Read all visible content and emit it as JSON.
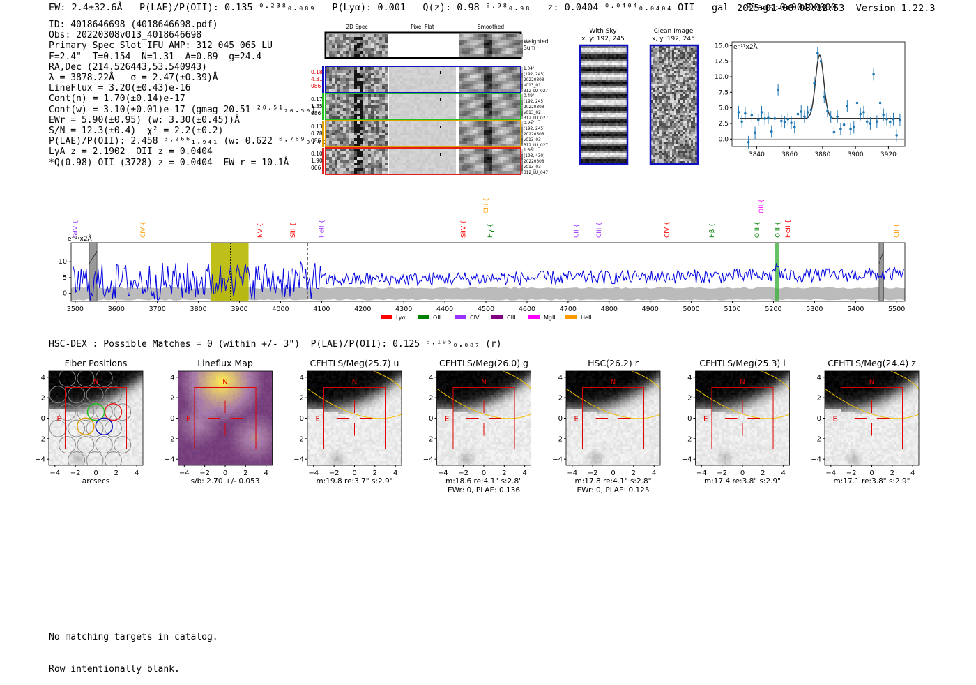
{
  "header": {
    "left": "EW: 2.4±32.6Å   P(LAE)/P(OII): 0.135 ⁰·²³⁸₀.₀₈₉   P(Lyα): 0.001   Q(z): 0.98 ⁰·⁹⁸₀.₉₈   z: 0.0404 ⁰·⁰⁴⁰⁴₀.₀₄₀₄ OII   gal   Flags:0x00400000",
    "timestamp": "2025-01-06 08:12:53",
    "version": "Version 1.22.3"
  },
  "info_lines": [
    "ID: 4018646698 (4018646698.pdf)",
    "Obs: 20220308v013_4018646698",
    "Primary Spec_Slot_IFU_AMP: 312_045_065_LU",
    "F=2.4\"  T=0.154  N=1.31  A=0.89  g=24.4",
    "RA,Dec (214.526443,53.540943)",
    "λ = 3878.22Å   σ = 2.47(±0.39)Å",
    "LineFlux = 3.20(±0.43)e-16",
    "Cont(n) = 1.70(±0.14)e-17",
    "Cont(w) = 3.10(±0.01)e-17 (gmag 20.51 ²⁰·⁵¹₂₀.₅₀)",
    "EWr = 5.90(±0.95) (w: 3.30(±0.45))Å",
    "S/N = 12.3(±0.4)  χ² = 2.2(±0.2)",
    "P(LAE)/P(OII): 2.458 ³·²⁶⁶₁.₉₄₁ (w: 0.622 ⁰·⁷⁶⁹₀.₄₉₂)",
    "LyA z = 2.1902  OII z = 0.0404",
    "*Q(0.98) OII (3728) z = 0.0404  EW r = 10.1Å"
  ],
  "cutouts": {
    "headers": [
      "2D Spec",
      "Pixel Flat",
      "Smoothed"
    ],
    "weighted_label": "Weighted\nSum",
    "rows": [
      {
        "left": [
          "0.18",
          "4.31",
          "086"
        ],
        "left_color": "#e00000",
        "border": "#1010c0",
        "right": [
          "1.04\"",
          "(192, 245)",
          "20220308",
          "v013_01",
          "312_LU_027"
        ]
      },
      {
        "left": [
          "0.17",
          "1.35",
          "086"
        ],
        "left_color": "#000000",
        "border": "#20c020",
        "right": [
          "0.49\"",
          "(192, 245)",
          "20220308",
          "v013_02",
          "312_LU_027"
        ]
      },
      {
        "left": [
          "0.13",
          "0.78",
          "086"
        ],
        "left_color": "#000000",
        "border": "#e0a000",
        "right": [
          "0.96\"",
          "(192, 245)",
          "20220308",
          "v013_03",
          "312_LU_027"
        ]
      },
      {
        "left": [
          "0.10",
          "1.90",
          "066"
        ],
        "left_color": "#000000",
        "border": "#e02020",
        "right": [
          "1.66\"",
          "(193, 430)",
          "20220308",
          "v013_03",
          "312_LU_047"
        ]
      }
    ]
  },
  "sky_panels": [
    {
      "title": "With Sky",
      "subtitle": "x, y: 192, 245"
    },
    {
      "title": "Clean Image",
      "subtitle": "x, y: 192, 245"
    }
  ],
  "line_fit_chart": {
    "type": "scatter",
    "yunit": "e⁻¹⁷x2Å",
    "xlim": [
      3825,
      3930
    ],
    "ylim": [
      -1.2,
      15.6
    ],
    "xticks": [
      3840,
      3860,
      3880,
      3900,
      3920
    ],
    "yticks": [
      0.0,
      2.5,
      5.0,
      7.5,
      10.0,
      12.5,
      15.0
    ],
    "xtick_labels": [
      "3840",
      "3860",
      "3880",
      "3900",
      "3920"
    ],
    "ytick_labels": [
      "0.0",
      "2.5",
      "5.0",
      "7.5",
      "10.0",
      "12.5",
      "15.0"
    ],
    "points": [
      [
        3829,
        4.3,
        1.0
      ],
      [
        3831,
        2.8,
        1.0
      ],
      [
        3833,
        4.1,
        1.0
      ],
      [
        3835,
        -0.5,
        1.0
      ],
      [
        3837,
        3.8,
        1.0
      ],
      [
        3839,
        1.0,
        1.0
      ],
      [
        3841,
        3.1,
        1.0
      ],
      [
        3843,
        4.3,
        1.0
      ],
      [
        3845,
        3.3,
        1.0
      ],
      [
        3847,
        3.4,
        1.0
      ],
      [
        3849,
        1.2,
        1.0
      ],
      [
        3851,
        3.3,
        1.0
      ],
      [
        3853,
        7.9,
        0.9
      ],
      [
        3855,
        2.9,
        1.0
      ],
      [
        3857,
        2.7,
        1.0
      ],
      [
        3859,
        3.2,
        1.0
      ],
      [
        3861,
        2.6,
        1.0
      ],
      [
        3863,
        1.9,
        1.0
      ],
      [
        3865,
        4.0,
        1.0
      ],
      [
        3867,
        4.4,
        1.0
      ],
      [
        3869,
        3.6,
        1.0
      ],
      [
        3871,
        4.3,
        1.0
      ],
      [
        3873,
        4.7,
        1.0
      ],
      [
        3875,
        9.0,
        1.0
      ],
      [
        3877,
        13.8,
        1.0
      ],
      [
        3879,
        12.5,
        1.0
      ],
      [
        3881,
        6.8,
        1.0
      ],
      [
        3883,
        4.5,
        1.0
      ],
      [
        3885,
        3.5,
        1.0
      ],
      [
        3887,
        1.1,
        1.0
      ],
      [
        3889,
        3.6,
        1.0
      ],
      [
        3891,
        1.6,
        1.0
      ],
      [
        3893,
        2.3,
        1.0
      ],
      [
        3895,
        5.3,
        1.0
      ],
      [
        3897,
        1.6,
        1.0
      ],
      [
        3899,
        1.9,
        1.0
      ],
      [
        3901,
        5.8,
        1.0
      ],
      [
        3903,
        4.0,
        1.0
      ],
      [
        3905,
        4.3,
        1.0
      ],
      [
        3907,
        2.8,
        1.0
      ],
      [
        3909,
        2.5,
        1.0
      ],
      [
        3911,
        10.4,
        1.0
      ],
      [
        3913,
        2.8,
        1.0
      ],
      [
        3915,
        5.8,
        1.0
      ],
      [
        3917,
        3.9,
        1.0
      ],
      [
        3919,
        3.2,
        1.0
      ],
      [
        3921,
        2.7,
        1.0
      ],
      [
        3923,
        3.2,
        1.0
      ],
      [
        3925,
        0.6,
        1.0
      ],
      [
        3927,
        3.1,
        1.0
      ]
    ],
    "model": {
      "continuum": 3.3,
      "amplitude": 10.2,
      "center": 3878.22,
      "sigma": 2.47
    }
  },
  "spectrum_chart": {
    "type": "line",
    "yunit": "e⁻¹⁷x2Å",
    "xlim": [
      3490,
      5520
    ],
    "ylim": [
      -2.5,
      16
    ],
    "xticks": [
      3500,
      3600,
      3700,
      3800,
      3900,
      4000,
      4100,
      4200,
      4300,
      4400,
      4500,
      4600,
      4700,
      4800,
      4900,
      5000,
      5100,
      5200,
      5300,
      5400,
      5500
    ],
    "xtick_labels": [
      "3500",
      "3600",
      "3700",
      "3800",
      "3900",
      "4000",
      "4100",
      "4200",
      "4300",
      "4400",
      "4500",
      "4600",
      "4700",
      "4800",
      "4900",
      "5000",
      "5100",
      "5200",
      "5300",
      "5400",
      "5500"
    ],
    "yticks": [
      0,
      5,
      10
    ],
    "ytick_labels": [
      "0",
      "5",
      "10"
    ],
    "line_labels": [
      {
        "name": "SiIV",
        "wave": 3500,
        "color": "#9933ff",
        "level": 0
      },
      {
        "name": "CIV",
        "wave": 3665,
        "color": "#ff9900",
        "level": 0
      },
      {
        "name": "NV",
        "wave": 3950,
        "color": "#ff0000",
        "level": 0
      },
      {
        "name": "SiII",
        "wave": 4030,
        "color": "#ff0000",
        "level": 0
      },
      {
        "name": "HeII",
        "wave": 4100,
        "color": "#9933ff",
        "level": 0
      },
      {
        "name": "SiIV",
        "wave": 4445,
        "color": "#ff0000",
        "level": 0
      },
      {
        "name": "CIII",
        "wave": 4500,
        "color": "#ff9900",
        "level": 1
      },
      {
        "name": "Hγ",
        "wave": 4510,
        "color": "#008000",
        "level": 0
      },
      {
        "name": "CII",
        "wave": 4720,
        "color": "#9933ff",
        "level": 0
      },
      {
        "name": "CIII",
        "wave": 4775,
        "color": "#9933ff",
        "level": 0
      },
      {
        "name": "CIV",
        "wave": 4940,
        "color": "#ff0000",
        "level": 0
      },
      {
        "name": "Hβ",
        "wave": 5050,
        "color": "#008000",
        "level": 0
      },
      {
        "name": "OIII",
        "wave": 5160,
        "color": "#008000",
        "level": 0
      },
      {
        "name": "OII",
        "wave": 5170,
        "color": "#ff00ff",
        "level": 1
      },
      {
        "name": "OIII",
        "wave": 5210,
        "color": "#008000",
        "level": 0
      },
      {
        "name": "HeII",
        "wave": 5235,
        "color": "#ff0000",
        "level": 0
      },
      {
        "name": "CII",
        "wave": 5500,
        "color": "#ff9900",
        "level": 0
      }
    ],
    "legend": [
      {
        "name": "Lyα",
        "color": "#ff0000"
      },
      {
        "name": "OII",
        "color": "#008000"
      },
      {
        "name": "CIV",
        "color": "#9933ff"
      },
      {
        "name": "CIII",
        "color": "#800080"
      },
      {
        "name": "MgII",
        "color": "#ff00ff"
      },
      {
        "name": "HeII",
        "color": "#ff9900"
      }
    ],
    "highlight_band": [
      3830,
      3922
    ],
    "highlight_line": 3878,
    "dashed_line": 4066,
    "masked_regions": [
      [
        3534,
        3553
      ],
      [
        5457,
        5468
      ]
    ],
    "oii_band": [
      5204,
      5214
    ]
  },
  "hsc_header": "HSC-DEX : Possible Matches = 0 (within +/- 3\")  P(LAE)/P(OII): 0.125 ⁰·¹⁹⁵₀.₀₈₇ (r)",
  "imaging_panels": [
    {
      "title": "Fiber Positions",
      "caption": [
        "arcsecs"
      ],
      "type": "fibers"
    },
    {
      "title": "Lineflux Map",
      "caption": [
        "s/b: 2.70 +/- 0.053"
      ],
      "type": "lineflux"
    },
    {
      "title": "CFHTLS/Meg(25.7) u",
      "caption": [
        "m:19.8  re:3.7\"  s:2.9\""
      ],
      "type": "image"
    },
    {
      "title": "CFHTLS/Meg(26.0) g",
      "caption": [
        "m:18.6  re:4.1\"  s:2.8\"",
        "EWr: 0, PLAE: 0.136"
      ],
      "type": "image"
    },
    {
      "title": "HSC(26.2) r",
      "caption": [
        "m:17.8  re:4.1\"  s:2.8\"",
        "EWr: 0, PLAE: 0.125"
      ],
      "type": "image"
    },
    {
      "title": "CFHTLS/Meg(25.3) i",
      "caption": [
        "m:17.4  re:3.8\"  s:2.9\""
      ],
      "type": "image"
    },
    {
      "title": "CFHTLS/Meg(24.4) z",
      "caption": [
        "m:17.1  re:3.8\"  s:2.9\""
      ],
      "type": "image"
    }
  ],
  "imaging_axes": {
    "ticks": [
      -4,
      -2,
      0,
      2,
      4
    ],
    "xtick_labels": [
      "−4",
      "−2",
      "0",
      "2",
      "4"
    ],
    "ytick_labels": [
      "−4",
      "−2",
      "0",
      "2",
      "4"
    ],
    "north_label": "N",
    "east_label": "E"
  },
  "footer": [
    "No matching targets in catalog.",
    "Row intentionally blank."
  ],
  "chart_data": [
    {
      "type": "scatter",
      "xlim": [
        3825,
        3930
      ],
      "ylim": [
        -1.2,
        15.6
      ],
      "x": [
        3829,
        3831,
        3833,
        3835,
        3837,
        3839,
        3841,
        3843,
        3845,
        3847,
        3849,
        3851,
        3853,
        3855,
        3857,
        3859,
        3861,
        3863,
        3865,
        3867,
        3869,
        3871,
        3873,
        3875,
        3877,
        3879,
        3881,
        3883,
        3885,
        3887,
        3889,
        3891,
        3893,
        3895,
        3897,
        3899,
        3901,
        3903,
        3905,
        3907,
        3909,
        3911,
        3913,
        3915,
        3917,
        3919,
        3921,
        3923,
        3925,
        3927
      ],
      "y": [
        4.3,
        2.8,
        4.1,
        -0.5,
        3.8,
        1.0,
        3.1,
        4.3,
        3.3,
        3.4,
        1.2,
        3.3,
        7.9,
        2.9,
        2.7,
        3.2,
        2.6,
        1.9,
        4.0,
        4.4,
        3.6,
        4.3,
        4.7,
        9.0,
        13.8,
        12.5,
        6.8,
        4.5,
        3.5,
        1.1,
        3.6,
        1.6,
        2.3,
        5.3,
        1.6,
        1.9,
        5.8,
        4.0,
        4.3,
        2.8,
        2.5,
        10.4,
        2.8,
        5.8,
        3.9,
        3.2,
        2.7,
        3.2,
        0.6,
        3.1
      ]
    },
    {
      "type": "line",
      "xlim": [
        3490,
        5520
      ],
      "ylim": [
        -2.5,
        16
      ],
      "note_series": []
    }
  ]
}
